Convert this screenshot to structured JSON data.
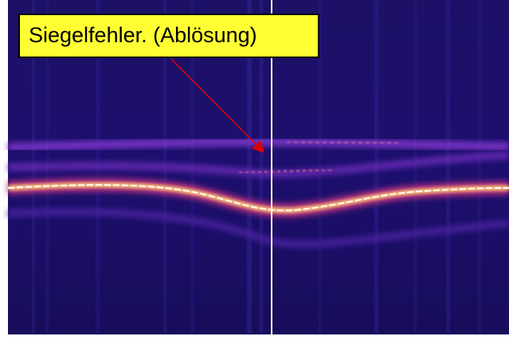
{
  "annotation": {
    "label": "Siegelfehler. (Ablösung)"
  }
}
